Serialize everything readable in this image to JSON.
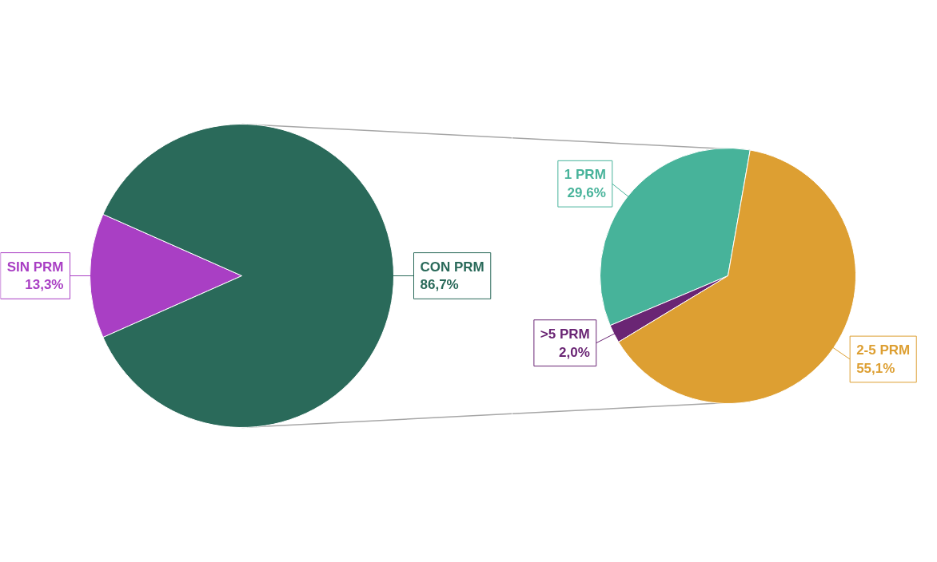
{
  "chart_data": [
    {
      "type": "pie",
      "categories": [
        "SIN PRM",
        "CON PRM"
      ],
      "values": [
        13.3,
        86.7
      ],
      "colors": [
        "#a93fc4",
        "#2a6a5a"
      ],
      "value_labels": [
        "13,3%",
        "86,7%"
      ]
    },
    {
      "type": "pie",
      "categories": [
        "1 PRM",
        ">5 PRM",
        "2-5 PRM"
      ],
      "values": [
        29.6,
        2.0,
        55.1
      ],
      "colors": [
        "#47b39a",
        "#6a2574",
        "#dd9f32"
      ],
      "value_labels": [
        "29,6%",
        "2,0%",
        "55,1%"
      ]
    }
  ]
}
